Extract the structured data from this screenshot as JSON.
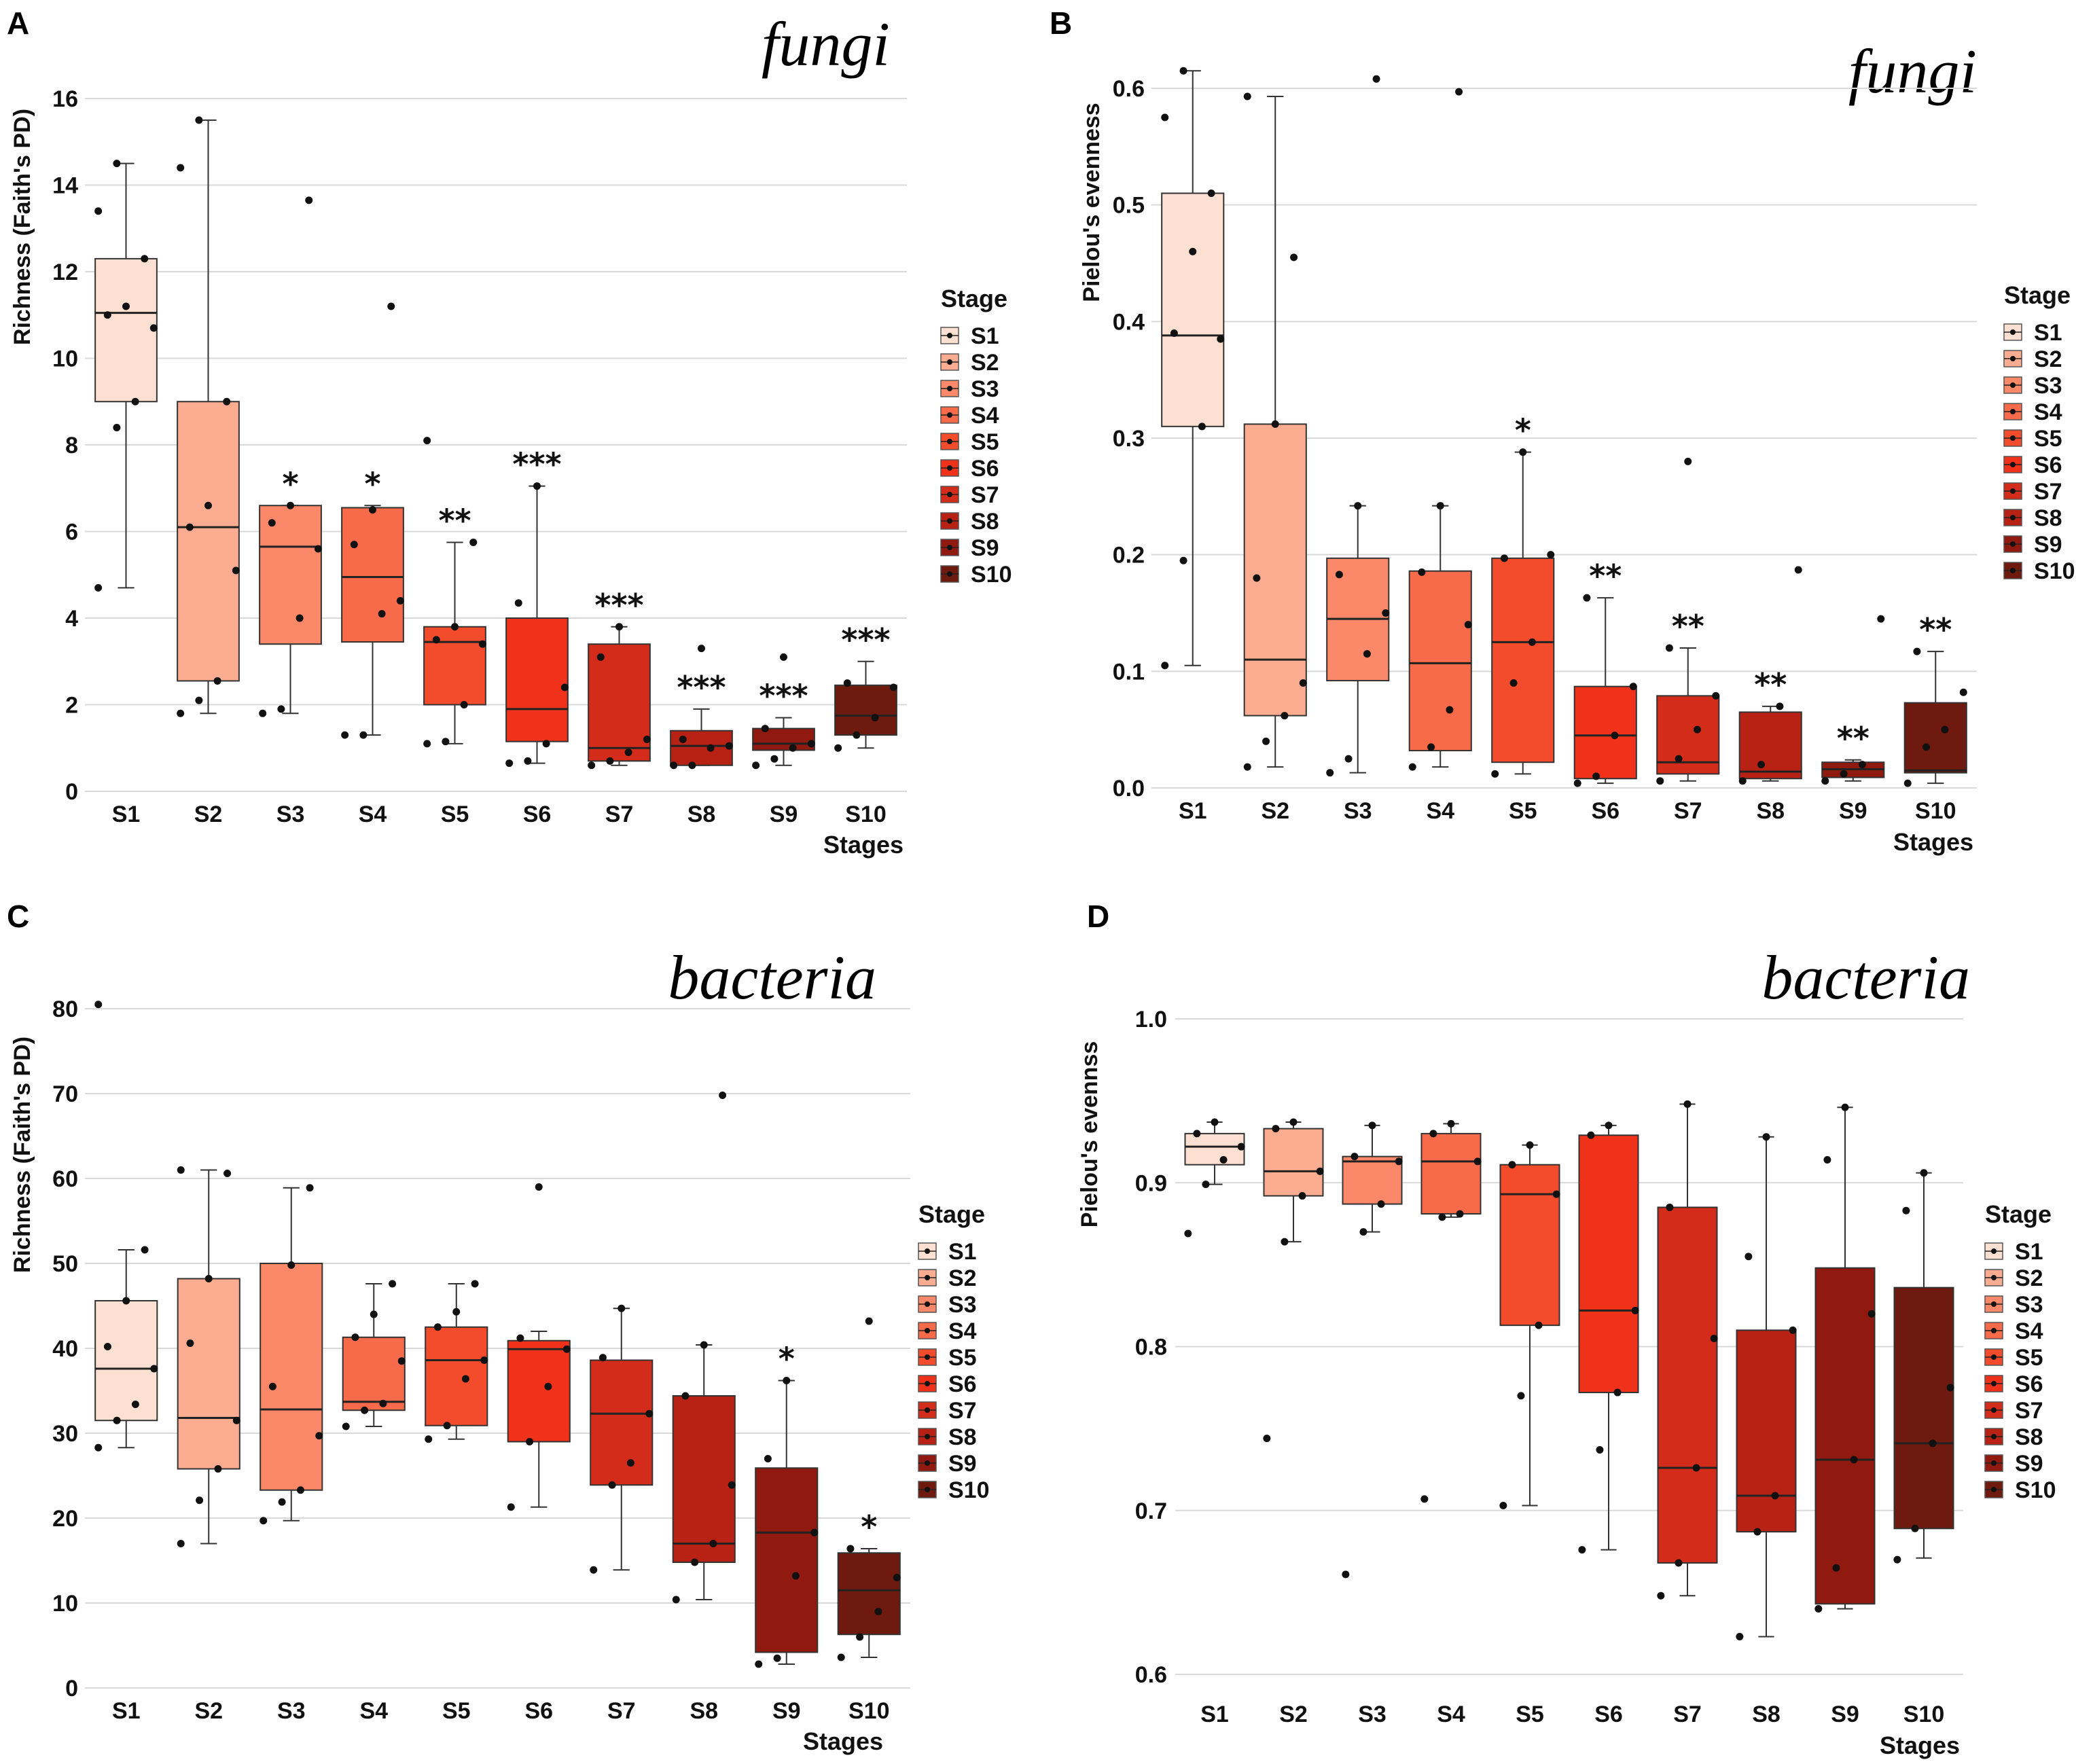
{
  "stage_colors": [
    "#fde0d2",
    "#fcad91",
    "#fb8868",
    "#f76a4a",
    "#f34c2d",
    "#f0321a",
    "#d42c1a",
    "#b82215",
    "#901a10",
    "#6e1a0f"
  ],
  "chart_data": [
    {
      "id": "A",
      "panel_letter": "A",
      "taxon": "fungi",
      "type": "box",
      "ylabel": "Richness (Faith's PD)",
      "xlabel": "Stages",
      "ylim": [
        0,
        16
      ],
      "yticks": [
        0,
        2,
        4,
        6,
        8,
        10,
        12,
        14,
        16
      ],
      "legend_title": "Stage",
      "legend_position": "right",
      "categories": [
        "S1",
        "S2",
        "S3",
        "S4",
        "S5",
        "S6",
        "S7",
        "S8",
        "S9",
        "S10"
      ],
      "boxes": [
        {
          "min": 4.7,
          "q1": 9.0,
          "median": 11.05,
          "q3": 12.3,
          "max": 14.5,
          "points": [
            4.7,
            8.4,
            9.0,
            10.7,
            11.0,
            11.2,
            12.3,
            13.4,
            14.5
          ],
          "sig": ""
        },
        {
          "min": 1.8,
          "q1": 2.55,
          "median": 6.1,
          "q3": 9.0,
          "max": 15.5,
          "points": [
            1.8,
            2.1,
            2.55,
            5.1,
            6.1,
            6.6,
            9.0,
            14.4,
            15.5
          ],
          "sig": ""
        },
        {
          "min": 1.8,
          "q1": 3.4,
          "median": 5.65,
          "q3": 6.6,
          "max": 6.6,
          "points": [
            1.8,
            1.9,
            4.0,
            5.6,
            6.2,
            6.6,
            13.65
          ],
          "sig": "*"
        },
        {
          "min": 1.3,
          "q1": 3.45,
          "median": 4.95,
          "q3": 6.55,
          "max": 6.6,
          "points": [
            1.3,
            1.3,
            4.1,
            4.4,
            5.7,
            6.5,
            11.2
          ],
          "sig": "*"
        },
        {
          "min": 1.1,
          "q1": 2.0,
          "median": 3.45,
          "q3": 3.8,
          "max": 5.75,
          "points": [
            1.1,
            1.15,
            2.0,
            3.4,
            3.5,
            3.8,
            5.75,
            8.1
          ],
          "sig": "**"
        },
        {
          "min": 0.65,
          "q1": 1.15,
          "median": 1.9,
          "q3": 4.0,
          "max": 7.05,
          "points": [
            0.65,
            0.7,
            1.1,
            2.4,
            4.35,
            7.05
          ],
          "sig": "***"
        },
        {
          "min": 0.6,
          "q1": 0.7,
          "median": 1.0,
          "q3": 3.4,
          "max": 3.8,
          "points": [
            0.6,
            0.7,
            0.9,
            1.2,
            3.1,
            3.8
          ],
          "sig": "***"
        },
        {
          "min": 0.6,
          "q1": 0.6,
          "median": 1.05,
          "q3": 1.4,
          "max": 1.9,
          "points": [
            0.6,
            0.6,
            1.0,
            1.05,
            1.2,
            3.3
          ],
          "sig": "***"
        },
        {
          "min": 0.6,
          "q1": 0.95,
          "median": 1.1,
          "q3": 1.45,
          "max": 1.7,
          "points": [
            0.6,
            0.75,
            1.0,
            1.1,
            1.45,
            3.1
          ],
          "sig": "***"
        },
        {
          "min": 1.0,
          "q1": 1.3,
          "median": 1.75,
          "q3": 2.45,
          "max": 3.0,
          "points": [
            1.0,
            1.3,
            1.7,
            2.4,
            2.5
          ],
          "sig": "***"
        }
      ]
    },
    {
      "id": "B",
      "panel_letter": "B",
      "taxon": "fungi",
      "type": "box",
      "ylabel": "Pielou's evenness",
      "xlabel": "Stages",
      "ylim": [
        0,
        0.6
      ],
      "yticks": [
        0.0,
        0.1,
        0.2,
        0.3,
        0.4,
        0.5,
        0.6
      ],
      "legend_title": "Stage",
      "legend_position": "right",
      "categories": [
        "S1",
        "S2",
        "S3",
        "S4",
        "S5",
        "S6",
        "S7",
        "S8",
        "S9",
        "S10"
      ],
      "boxes": [
        {
          "min": 0.105,
          "q1": 0.31,
          "median": 0.388,
          "q3": 0.51,
          "max": 0.615,
          "points": [
            0.105,
            0.195,
            0.31,
            0.385,
            0.39,
            0.46,
            0.51,
            0.575,
            0.615
          ],
          "sig": ""
        },
        {
          "min": 0.018,
          "q1": 0.062,
          "median": 0.11,
          "q3": 0.312,
          "max": 0.593,
          "points": [
            0.018,
            0.04,
            0.062,
            0.09,
            0.18,
            0.312,
            0.455,
            0.593
          ],
          "sig": ""
        },
        {
          "min": 0.013,
          "q1": 0.092,
          "median": 0.145,
          "q3": 0.197,
          "max": 0.242,
          "points": [
            0.013,
            0.025,
            0.115,
            0.15,
            0.183,
            0.242,
            0.608
          ],
          "sig": ""
        },
        {
          "min": 0.018,
          "q1": 0.032,
          "median": 0.107,
          "q3": 0.186,
          "max": 0.242,
          "points": [
            0.018,
            0.035,
            0.067,
            0.14,
            0.185,
            0.242,
            0.597
          ],
          "sig": ""
        },
        {
          "min": 0.012,
          "q1": 0.022,
          "median": 0.125,
          "q3": 0.197,
          "max": 0.288,
          "points": [
            0.012,
            0.09,
            0.125,
            0.2,
            0.197,
            0.288
          ],
          "sig": "*"
        },
        {
          "min": 0.004,
          "q1": 0.008,
          "median": 0.045,
          "q3": 0.087,
          "max": 0.163,
          "points": [
            0.004,
            0.01,
            0.045,
            0.087,
            0.163
          ],
          "sig": "**"
        },
        {
          "min": 0.006,
          "q1": 0.012,
          "median": 0.022,
          "q3": 0.079,
          "max": 0.12,
          "points": [
            0.006,
            0.025,
            0.05,
            0.079,
            0.12,
            0.28
          ],
          "sig": "**"
        },
        {
          "min": 0.006,
          "q1": 0.008,
          "median": 0.014,
          "q3": 0.065,
          "max": 0.07,
          "points": [
            0.006,
            0.02,
            0.07,
            0.187
          ],
          "sig": "**"
        },
        {
          "min": 0.006,
          "q1": 0.009,
          "median": 0.016,
          "q3": 0.022,
          "max": 0.024,
          "points": [
            0.006,
            0.012,
            0.02,
            0.145
          ],
          "sig": "**"
        },
        {
          "min": 0.004,
          "q1": 0.013,
          "median": 0.015,
          "q3": 0.073,
          "max": 0.117,
          "points": [
            0.004,
            0.035,
            0.05,
            0.082,
            0.117
          ],
          "sig": "**"
        }
      ]
    },
    {
      "id": "C",
      "panel_letter": "C",
      "taxon": "bacteria",
      "type": "box",
      "ylabel": "Richness (Faith's PD)",
      "xlabel": "Stages",
      "ylim": [
        0,
        80
      ],
      "yticks": [
        0,
        10,
        20,
        30,
        40,
        50,
        60,
        70,
        80
      ],
      "legend_title": "Stage",
      "legend_position": "right",
      "categories": [
        "S1",
        "S2",
        "S3",
        "S4",
        "S5",
        "S6",
        "S7",
        "S8",
        "S9",
        "S10"
      ],
      "boxes": [
        {
          "min": 28.3,
          "q1": 31.5,
          "median": 37.6,
          "q3": 45.6,
          "max": 51.6,
          "points": [
            28.3,
            31.5,
            33.4,
            37.6,
            40.2,
            45.6,
            51.6,
            80.5
          ],
          "sig": ""
        },
        {
          "min": 17.0,
          "q1": 25.8,
          "median": 31.8,
          "q3": 48.2,
          "max": 61.0,
          "points": [
            17.0,
            22.1,
            25.8,
            31.5,
            40.6,
            48.2,
            60.6,
            61.0
          ],
          "sig": ""
        },
        {
          "min": 19.7,
          "q1": 23.3,
          "median": 32.8,
          "q3": 50.0,
          "max": 58.9,
          "points": [
            19.7,
            21.9,
            23.3,
            29.7,
            35.5,
            49.8,
            58.9
          ],
          "sig": ""
        },
        {
          "min": 30.8,
          "q1": 32.7,
          "median": 33.7,
          "q3": 41.3,
          "max": 47.6,
          "points": [
            30.8,
            32.7,
            33.5,
            38.5,
            41.3,
            44.0,
            47.6
          ],
          "sig": ""
        },
        {
          "min": 29.3,
          "q1": 30.9,
          "median": 38.6,
          "q3": 42.5,
          "max": 47.6,
          "points": [
            29.3,
            30.9,
            36.4,
            38.6,
            42.5,
            44.3,
            47.6
          ],
          "sig": ""
        },
        {
          "min": 21.3,
          "q1": 29.0,
          "median": 39.9,
          "q3": 40.9,
          "max": 42.0,
          "points": [
            21.3,
            29.0,
            35.5,
            39.9,
            41.2,
            59.0
          ],
          "sig": ""
        },
        {
          "min": 13.9,
          "q1": 23.9,
          "median": 32.3,
          "q3": 38.6,
          "max": 44.7,
          "points": [
            13.9,
            23.9,
            26.5,
            32.3,
            38.9,
            44.7
          ],
          "sig": ""
        },
        {
          "min": 10.4,
          "q1": 14.8,
          "median": 17.0,
          "q3": 34.4,
          "max": 40.4,
          "points": [
            10.4,
            14.8,
            17.0,
            23.9,
            34.4,
            40.4,
            69.8
          ],
          "sig": ""
        },
        {
          "min": 2.8,
          "q1": 4.2,
          "median": 18.3,
          "q3": 25.9,
          "max": 36.2,
          "points": [
            2.8,
            3.5,
            13.2,
            18.3,
            27.0,
            36.2
          ],
          "sig": "*"
        },
        {
          "min": 3.6,
          "q1": 6.3,
          "median": 11.5,
          "q3": 15.9,
          "max": 16.4,
          "points": [
            3.6,
            6.0,
            9.0,
            13.0,
            16.4,
            43.2
          ],
          "sig": "*"
        }
      ]
    },
    {
      "id": "D",
      "panel_letter": "D",
      "taxon": "bacteria",
      "type": "box",
      "ylabel": "Pielou's evennss",
      "xlabel": "Stages",
      "ylim": [
        0.6,
        1.0
      ],
      "yticks": [
        0.6,
        0.7,
        0.8,
        0.9,
        1.0
      ],
      "legend_title": "Stage",
      "legend_position": "right",
      "categories": [
        "S1",
        "S2",
        "S3",
        "S4",
        "S5",
        "S6",
        "S7",
        "S8",
        "S9",
        "S10"
      ],
      "boxes": [
        {
          "min": 0.899,
          "q1": 0.911,
          "median": 0.922,
          "q3": 0.93,
          "max": 0.937,
          "points": [
            0.869,
            0.899,
            0.914,
            0.922,
            0.93,
            0.937
          ],
          "sig": ""
        },
        {
          "min": 0.864,
          "q1": 0.892,
          "median": 0.907,
          "q3": 0.933,
          "max": 0.937,
          "points": [
            0.744,
            0.864,
            0.892,
            0.907,
            0.933,
            0.937
          ],
          "sig": ""
        },
        {
          "min": 0.87,
          "q1": 0.887,
          "median": 0.913,
          "q3": 0.916,
          "max": 0.935,
          "points": [
            0.661,
            0.87,
            0.887,
            0.913,
            0.916,
            0.935
          ],
          "sig": ""
        },
        {
          "min": 0.879,
          "q1": 0.881,
          "median": 0.913,
          "q3": 0.93,
          "max": 0.936,
          "points": [
            0.707,
            0.879,
            0.881,
            0.913,
            0.93,
            0.936
          ],
          "sig": ""
        },
        {
          "min": 0.703,
          "q1": 0.813,
          "median": 0.893,
          "q3": 0.911,
          "max": 0.923,
          "points": [
            0.703,
            0.77,
            0.813,
            0.893,
            0.911,
            0.923
          ],
          "sig": ""
        },
        {
          "min": 0.676,
          "q1": 0.772,
          "median": 0.822,
          "q3": 0.929,
          "max": 0.935,
          "points": [
            0.676,
            0.737,
            0.772,
            0.822,
            0.929,
            0.935
          ],
          "sig": ""
        },
        {
          "min": 0.648,
          "q1": 0.668,
          "median": 0.726,
          "q3": 0.885,
          "max": 0.948,
          "points": [
            0.648,
            0.668,
            0.726,
            0.805,
            0.885,
            0.948
          ],
          "sig": ""
        },
        {
          "min": 0.623,
          "q1": 0.687,
          "median": 0.709,
          "q3": 0.81,
          "max": 0.928,
          "points": [
            0.623,
            0.687,
            0.709,
            0.81,
            0.855,
            0.928
          ],
          "sig": ""
        },
        {
          "min": 0.64,
          "q1": 0.643,
          "median": 0.731,
          "q3": 0.848,
          "max": 0.946,
          "points": [
            0.64,
            0.665,
            0.731,
            0.82,
            0.914,
            0.946
          ],
          "sig": ""
        },
        {
          "min": 0.671,
          "q1": 0.689,
          "median": 0.741,
          "q3": 0.836,
          "max": 0.906,
          "points": [
            0.67,
            0.689,
            0.741,
            0.775,
            0.883,
            0.906
          ],
          "sig": ""
        }
      ]
    }
  ]
}
